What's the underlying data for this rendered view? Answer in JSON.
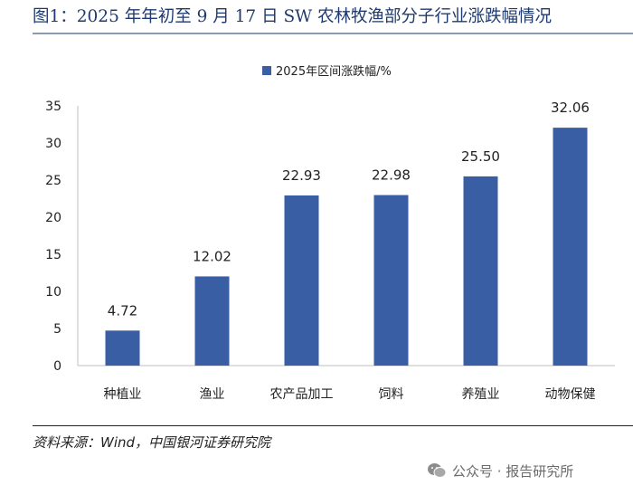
{
  "header": {
    "title": "图1：2025 年年初至 9 月 17 日 SW 农林牧渔部分子行业涨跌幅情况"
  },
  "chart_data": {
    "type": "bar",
    "title": "",
    "categories": [
      "种植业",
      "渔业",
      "农产品加工",
      "饲料",
      "养殖业",
      "动物保健"
    ],
    "series": [
      {
        "name": "2025年区间涨跌幅/%",
        "values": [
          4.72,
          12.02,
          22.93,
          22.98,
          25.5,
          32.06
        ]
      }
    ],
    "data_labels": [
      "4.72",
      "12.02",
      "22.93",
      "22.98",
      "25.50",
      "32.06"
    ],
    "yticks": [
      "0",
      "5",
      "10",
      "15",
      "20",
      "25",
      "30",
      "35"
    ],
    "ylim": [
      0,
      35
    ],
    "xlabel": "",
    "ylabel": "",
    "grid": false,
    "legend_position": "top",
    "bar_color": "#3a5ea4"
  },
  "footer": {
    "source": "资料来源：Wind，中国银河证券研究院",
    "watermark": "公众号 · 报告研究所",
    "watermark_icon": "wechat-icon"
  }
}
